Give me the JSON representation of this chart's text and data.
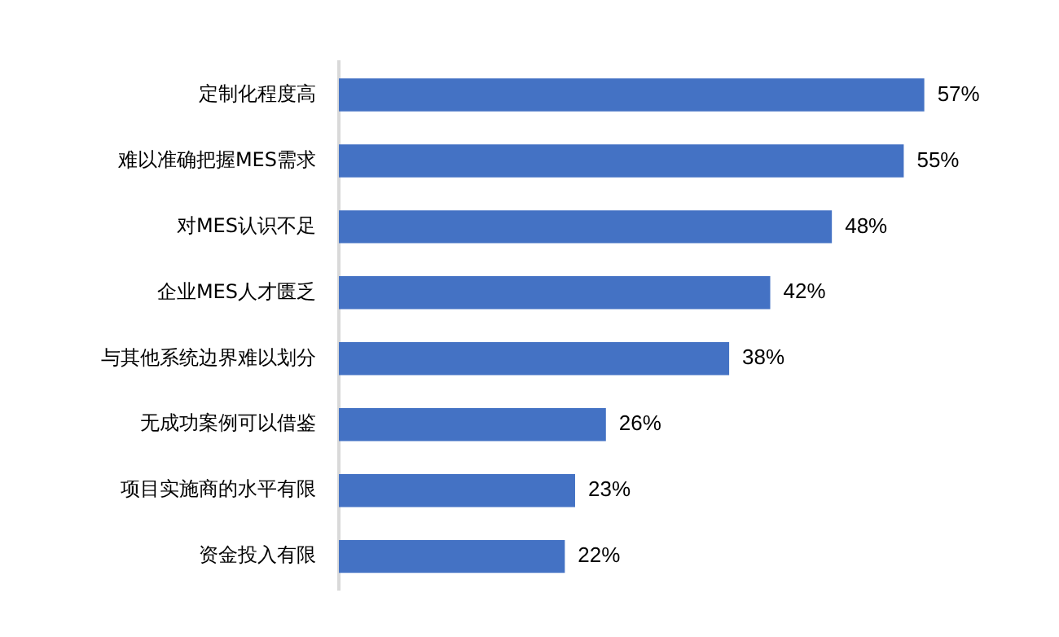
{
  "chart_data": {
    "type": "bar",
    "orientation": "horizontal",
    "categories": [
      "定制化程度高",
      "难以准确把握MES需求",
      "对MES认识不足",
      "企业MES人才匮乏",
      "与其他系统边界难以划分",
      "无成功案例可以借鉴",
      "项目实施商的水平有限",
      "资金投入有限"
    ],
    "values": [
      57,
      55,
      48,
      42,
      38,
      26,
      23,
      22
    ],
    "value_labels": [
      "57%",
      "55%",
      "48%",
      "42%",
      "38%",
      "26%",
      "23%",
      "22%"
    ],
    "color": "#4472c4",
    "tick_labels": "y",
    "grid": false,
    "legend": false
  }
}
